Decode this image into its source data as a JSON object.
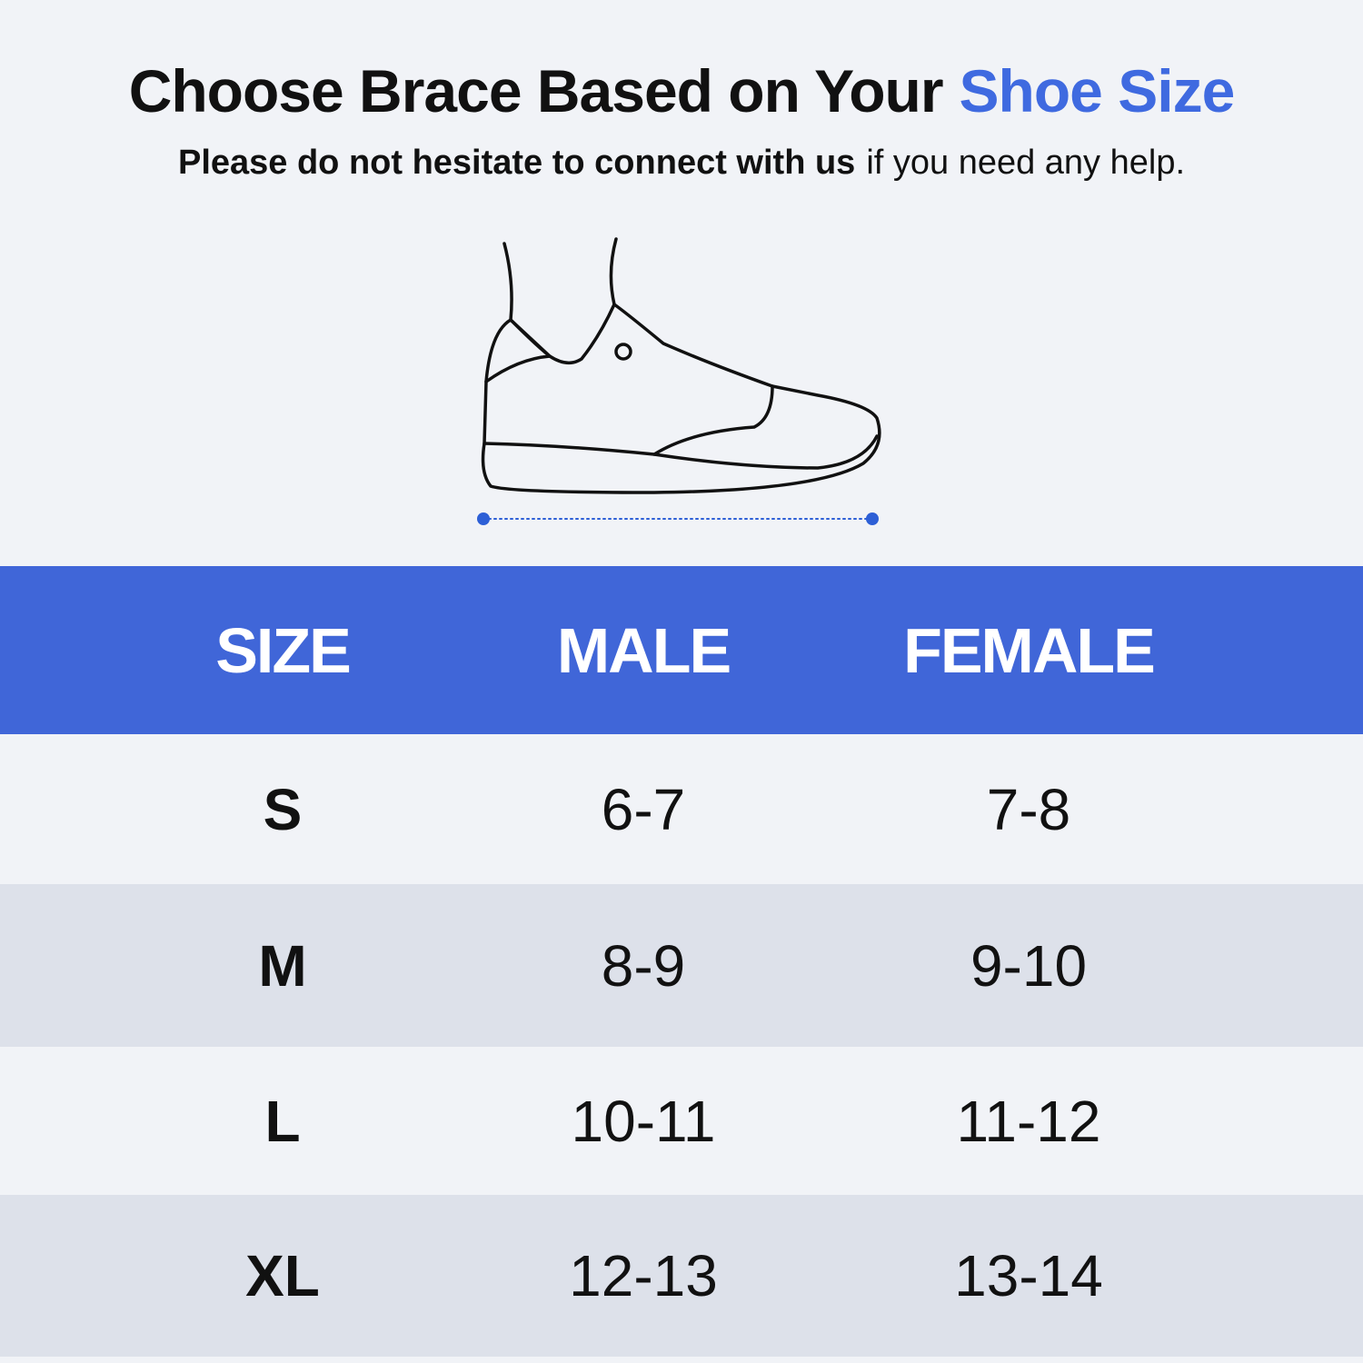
{
  "header": {
    "title": "Choose Brace Based on Your",
    "title_highlight": "Shoe Size",
    "subtitle_bold": "Please do not hesitate to connect with us",
    "subtitle": "if you need any help."
  },
  "table": {
    "columns": [
      "SIZE",
      "MALE",
      "FEMALE"
    ],
    "rows": [
      [
        "S",
        "6-7",
        "7-8"
      ],
      [
        "M",
        "8-9",
        "9-10"
      ],
      [
        "L",
        "10-11",
        "11-12"
      ],
      [
        "XL",
        "12-13",
        "13-14"
      ]
    ]
  }
}
